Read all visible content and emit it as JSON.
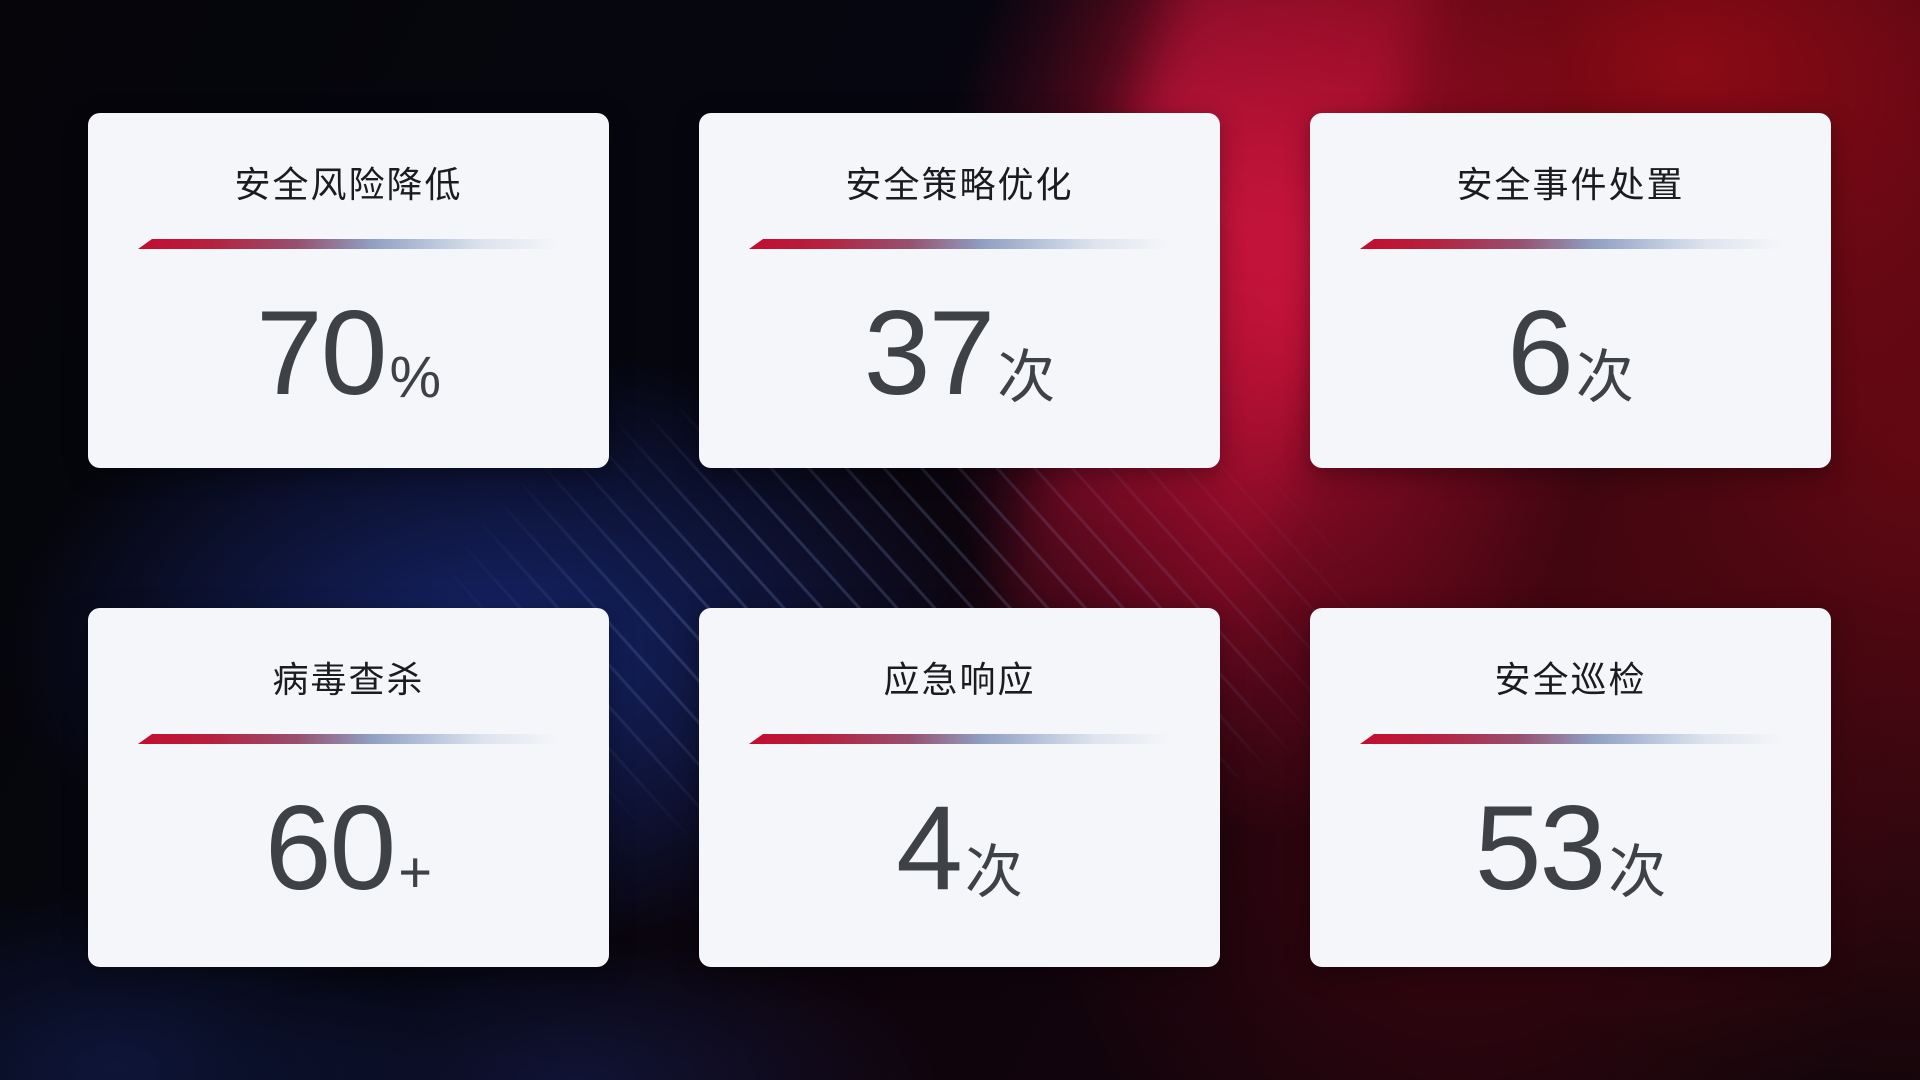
{
  "cards": [
    {
      "title": "安全风险降低",
      "value": "70",
      "unit": "%"
    },
    {
      "title": "安全策略优化",
      "value": "37",
      "unit": "次"
    },
    {
      "title": "安全事件处置",
      "value": "6",
      "unit": "次"
    },
    {
      "title": "病毒查杀",
      "value": "60",
      "unit": "+"
    },
    {
      "title": "应急响应",
      "value": "4",
      "unit": "次"
    },
    {
      "title": "安全巡检",
      "value": "53",
      "unit": "次"
    }
  ],
  "colors": {
    "accent_red": "#c30d2e",
    "divider_mid_blue": "#8f9dc0",
    "divider_fade": "#e4eaf2",
    "card_background": "#f5f6fa",
    "title_text": "#1b1c1e",
    "value_text": "#3e4145",
    "background_dark": "#06060c",
    "background_blue": "#17266f",
    "background_red": "#9e0a1e"
  }
}
